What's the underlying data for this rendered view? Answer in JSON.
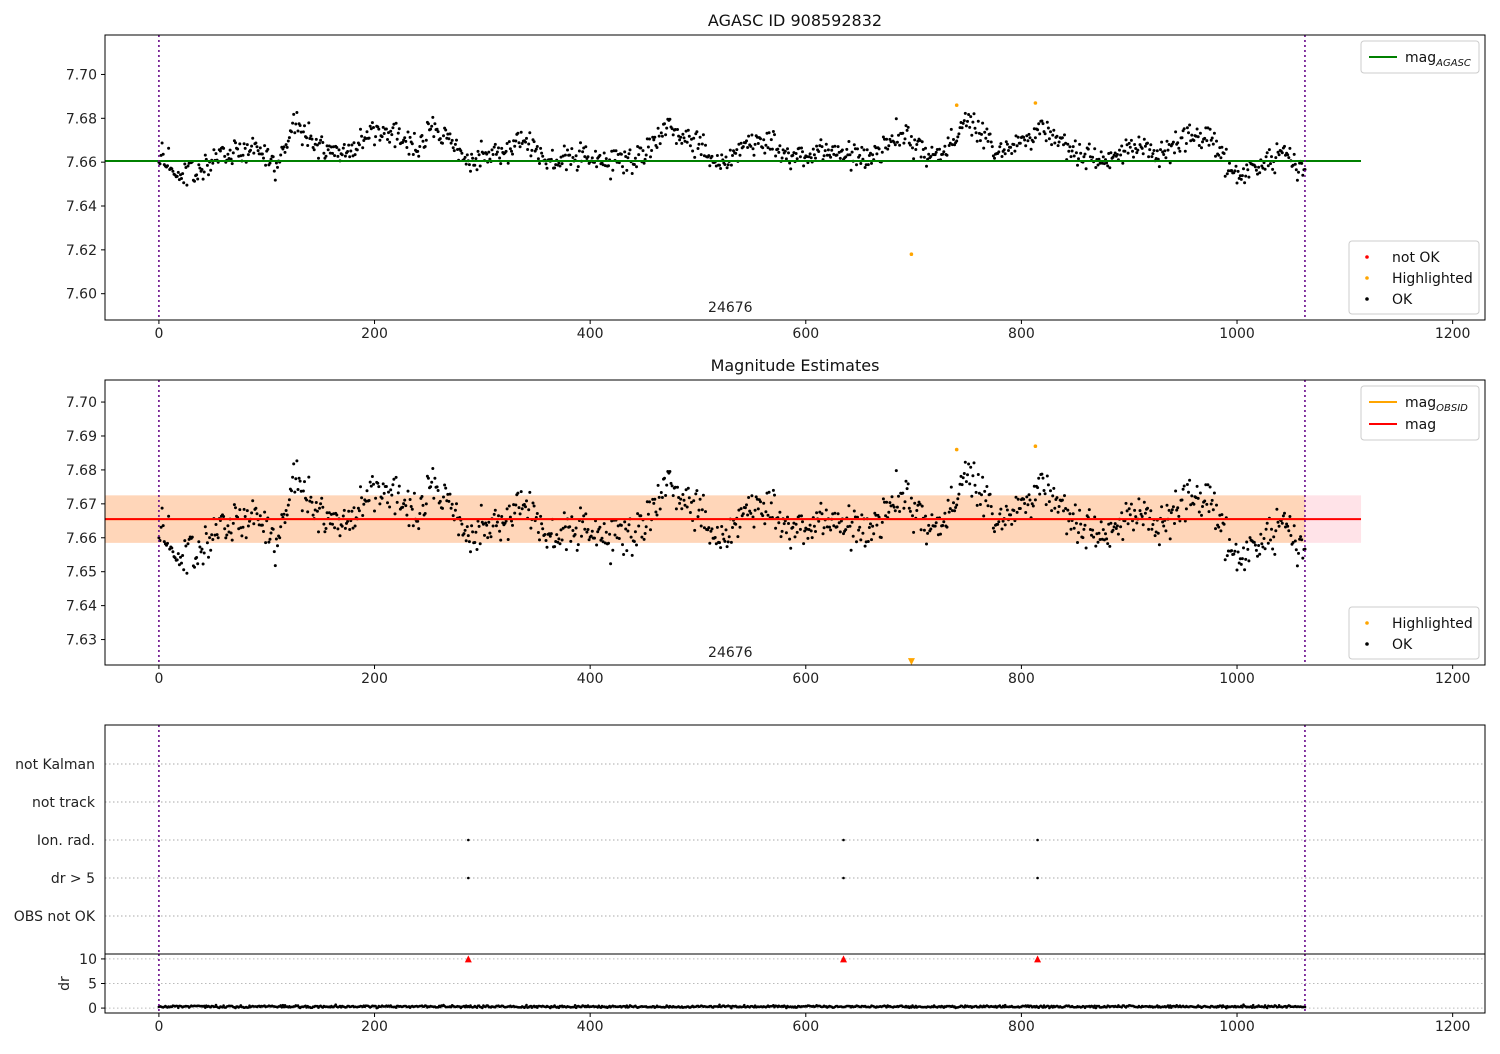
{
  "figure": {
    "title": "AGASC ID 908592832",
    "obsid_label": "24676"
  },
  "chart_data": [
    {
      "type": "scatter",
      "title": "AGASC ID 908592832",
      "xlim": [
        -50,
        1230
      ],
      "ylim": [
        7.588,
        7.718
      ],
      "xticks": [
        0,
        200,
        400,
        600,
        800,
        1000,
        1200
      ],
      "yticks": [
        7.6,
        7.62,
        7.64,
        7.66,
        7.68,
        7.7
      ],
      "ytick_decimals": 2,
      "annotation": "24676",
      "vlines": [
        0,
        1063
      ],
      "hlines": [
        {
          "name": "mag_AGASC",
          "y": 7.6605,
          "x_end": 1115,
          "color": "#008000"
        }
      ],
      "legend_lines": [
        {
          "name": "mag",
          "subscript": "AGASC",
          "color": "#008000"
        }
      ],
      "legend_points": [
        {
          "name": "not OK",
          "color": "#ff0000"
        },
        {
          "name": "Highlighted",
          "color": "#ffa500"
        },
        {
          "name": "OK",
          "color": "#000000"
        }
      ],
      "series": [
        {
          "name": "OK",
          "color": "#000000",
          "n_points": 1064,
          "x_range": [
            0,
            1063
          ],
          "mean": 7.664,
          "trend": [
            [
              0,
              7.662
            ],
            [
              20,
              7.654
            ],
            [
              40,
              7.658
            ],
            [
              60,
              7.664
            ],
            [
              90,
              7.666
            ],
            [
              110,
              7.657
            ],
            [
              125,
              7.679
            ],
            [
              140,
              7.668
            ],
            [
              170,
              7.664
            ],
            [
              200,
              7.673
            ],
            [
              220,
              7.672
            ],
            [
              240,
              7.666
            ],
            [
              255,
              7.677
            ],
            [
              270,
              7.669
            ],
            [
              290,
              7.661
            ],
            [
              320,
              7.665
            ],
            [
              340,
              7.671
            ],
            [
              360,
              7.66
            ],
            [
              390,
              7.664
            ],
            [
              420,
              7.66
            ],
            [
              450,
              7.663
            ],
            [
              470,
              7.676
            ],
            [
              500,
              7.668
            ],
            [
              520,
              7.658
            ],
            [
              540,
              7.667
            ],
            [
              560,
              7.67
            ],
            [
              590,
              7.661
            ],
            [
              610,
              7.665
            ],
            [
              640,
              7.664
            ],
            [
              660,
              7.663
            ],
            [
              690,
              7.673
            ],
            [
              710,
              7.663
            ],
            [
              730,
              7.666
            ],
            [
              750,
              7.679
            ],
            [
              780,
              7.664
            ],
            [
              810,
              7.672
            ],
            [
              820,
              7.676
            ],
            [
              850,
              7.663
            ],
            [
              880,
              7.661
            ],
            [
              910,
              7.668
            ],
            [
              930,
              7.663
            ],
            [
              950,
              7.671
            ],
            [
              975,
              7.672
            ],
            [
              995,
              7.654
            ],
            [
              1020,
              7.658
            ],
            [
              1040,
              7.663
            ],
            [
              1063,
              7.656
            ]
          ]
        },
        {
          "name": "Highlighted",
          "color": "#ffa500",
          "points": [
            [
              698,
              7.618
            ],
            [
              740,
              7.686
            ],
            [
              813,
              7.687
            ]
          ]
        },
        {
          "name": "not OK",
          "color": "#ff0000",
          "points": []
        }
      ]
    },
    {
      "type": "scatter",
      "title": "Magnitude Estimates",
      "xlim": [
        -50,
        1230
      ],
      "ylim": [
        7.6225,
        7.7065
      ],
      "xticks": [
        0,
        200,
        400,
        600,
        800,
        1000,
        1200
      ],
      "yticks": [
        7.63,
        7.64,
        7.65,
        7.66,
        7.67,
        7.68,
        7.69,
        7.7
      ],
      "ytick_decimals": 2,
      "annotation": "24676",
      "vlines": [
        0,
        1063
      ],
      "bands": [
        {
          "name": "mag band",
          "y0": 7.6585,
          "y1": 7.6725,
          "x_end": 1115,
          "color": "#ffc0cb",
          "opacity": 0.45
        },
        {
          "name": "mag_OBSID band",
          "y0": 7.6585,
          "y1": 7.6725,
          "x_end": 1063,
          "color": "#ffa500",
          "opacity": 0.2
        }
      ],
      "hlines": [
        {
          "name": "mag_OBSID",
          "y": 7.6655,
          "x_end": 1063,
          "color": "#ffa500"
        },
        {
          "name": "mag",
          "y": 7.6655,
          "x_end": 1115,
          "color": "#ff0000"
        }
      ],
      "legend_lines": [
        {
          "name": "mag",
          "subscript": "OBSID",
          "color": "#ffa500"
        },
        {
          "name": "mag",
          "subscript": "",
          "color": "#ff0000"
        }
      ],
      "legend_points": [
        {
          "name": "Highlighted",
          "color": "#ffa500"
        },
        {
          "name": "OK",
          "color": "#000000"
        }
      ],
      "series": [
        {
          "name": "OK",
          "color": "#000000",
          "same_as_panel": 0
        },
        {
          "name": "Highlighted",
          "color": "#ffa500",
          "points": [
            [
              740,
              7.686
            ],
            [
              813,
              7.687
            ]
          ]
        },
        {
          "name": "below range",
          "color": "#ffa500",
          "marker": "triangle-down",
          "points": [
            [
              698,
              7.6235
            ]
          ]
        }
      ]
    },
    {
      "type": "scatter",
      "title": "",
      "xlim": [
        -50,
        1230
      ],
      "xticks": [
        0,
        200,
        400,
        600,
        800,
        1000,
        1200
      ],
      "categories": [
        "not Kalman",
        "not track",
        "Ion. rad.",
        "dr > 5",
        "OBS not OK"
      ],
      "vlines": [
        0,
        1063
      ],
      "series": [
        {
          "name": "Ion. rad.",
          "color": "#000000",
          "x": [
            287,
            635,
            815
          ]
        },
        {
          "name": "dr > 5",
          "color": "#000000",
          "x": [
            287,
            635,
            815
          ]
        }
      ]
    },
    {
      "type": "scatter",
      "title": "",
      "ylabel": "dr",
      "xlim": [
        -50,
        1230
      ],
      "ylim": [
        -1,
        11
      ],
      "xticks": [
        0,
        200,
        400,
        600,
        800,
        1000,
        1200
      ],
      "yticks": [
        0,
        5,
        10
      ],
      "ytick_decimals": 0,
      "vlines": [
        0,
        1063
      ],
      "series": [
        {
          "name": "dr",
          "color": "#000000",
          "n_points": 1064,
          "x_range": [
            0,
            1063
          ],
          "typical": 0.3
        },
        {
          "name": "dr clipped",
          "color": "#ff0000",
          "marker": "triangle-up",
          "points": [
            [
              287,
              10
            ],
            [
              635,
              10
            ],
            [
              815,
              10
            ]
          ]
        }
      ]
    }
  ]
}
